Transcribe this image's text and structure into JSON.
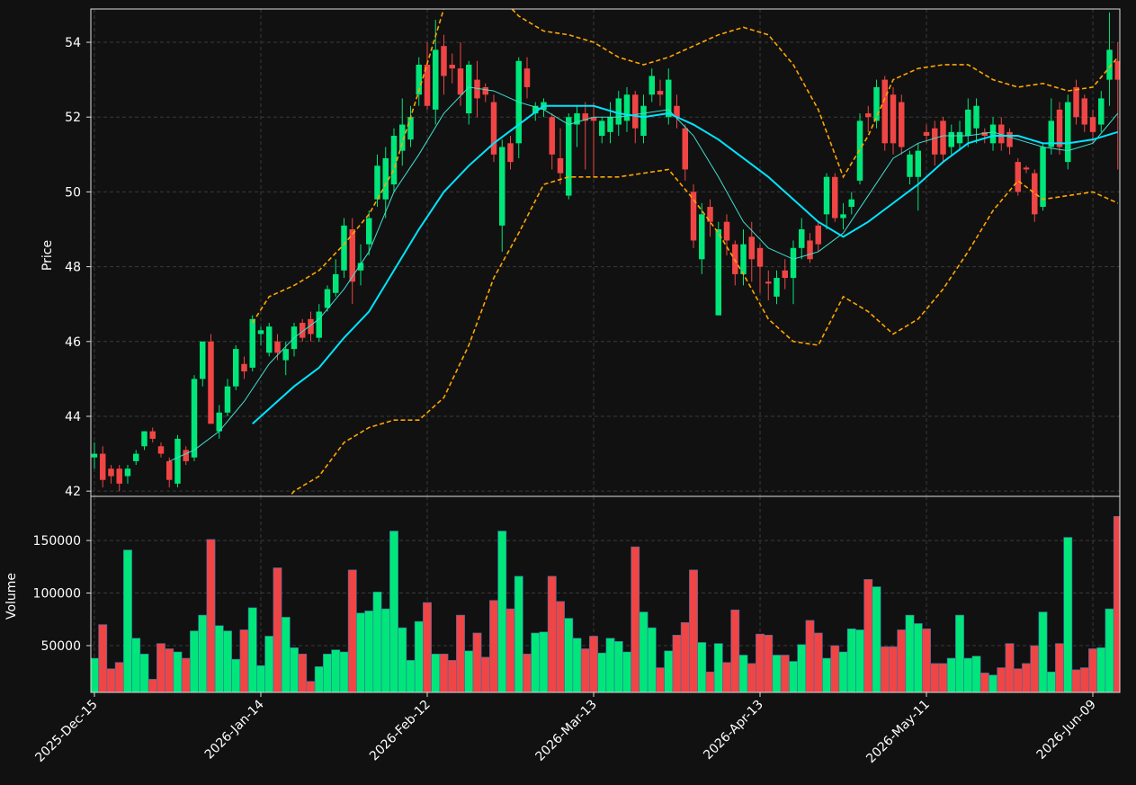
{
  "chart_data": {
    "type": "candlestick",
    "ylabel": "Price",
    "up_color": "#00e67a",
    "down_color": "#f04545",
    "grid": true,
    "xlim": [
      -0.43,
      123.24
    ],
    "xticks": [
      {
        "value": 0,
        "label": "2025-Dec-15"
      },
      {
        "value": 20,
        "label": "2026-Jan-14"
      },
      {
        "value": 40,
        "label": "2026-Feb-12"
      },
      {
        "value": 60,
        "label": "2026-Mar-13"
      },
      {
        "value": 80,
        "label": "2026-Apr-13"
      },
      {
        "value": 100,
        "label": "2026-May-11"
      },
      {
        "value": 120,
        "label": "2026-Jun-09"
      }
    ],
    "ylim": [
      41.86,
      54.89
    ],
    "yticks": [
      42,
      44,
      46,
      48,
      50,
      52,
      54
    ],
    "open": [
      42.9,
      43.0,
      42.6,
      42.6,
      42.4,
      42.8,
      43.2,
      43.6,
      43.2,
      42.8,
      42.2,
      43.1,
      42.9,
      45.0,
      46.0,
      43.6,
      44.1,
      44.8,
      45.4,
      45.3,
      46.2,
      45.7,
      46.0,
      45.5,
      45.8,
      46.5,
      46.6,
      46.1,
      46.9,
      47.3,
      47.9,
      49.0,
      47.9,
      48.6,
      49.8,
      49.8,
      50.2,
      51.1,
      51.4,
      52.6,
      53.4,
      52.2,
      53.9,
      53.4,
      53.3,
      52.1,
      53.0,
      52.8,
      52.4,
      49.1,
      51.3,
      51.3,
      53.3,
      52.1,
      52.2,
      52.0,
      50.9,
      49.9,
      51.8,
      52.1,
      52.0,
      51.5,
      51.6,
      51.8,
      51.9,
      52.6,
      51.5,
      52.6,
      52.7,
      52.0,
      52.3,
      51.7,
      50.0,
      48.2,
      49.6,
      46.7,
      49.2,
      48.6,
      47.8,
      48.8,
      48.5,
      47.6,
      47.2,
      47.9,
      47.7,
      48.5,
      48.7,
      49.1,
      49.4,
      50.4,
      49.3,
      49.6,
      50.3,
      52.1,
      51.9,
      53.0,
      52.6,
      52.4,
      50.4,
      50.4,
      51.6,
      51.7,
      51.9,
      51.2,
      51.3,
      51.5,
      51.7,
      51.6,
      51.3,
      51.8,
      51.6,
      50.8,
      50.65,
      50.5,
      49.6,
      51.2,
      52.2,
      50.8,
      52.8,
      52.5,
      52.0,
      51.8,
      53.0,
      53.5
    ],
    "high": [
      43.3,
      43.2,
      42.7,
      42.7,
      42.7,
      43.1,
      43.6,
      43.7,
      43.3,
      42.9,
      43.5,
      43.2,
      45.1,
      46.0,
      46.2,
      44.3,
      45.0,
      45.9,
      45.6,
      46.7,
      46.4,
      46.5,
      46.2,
      46.0,
      46.5,
      46.6,
      46.8,
      47.0,
      47.5,
      48.2,
      49.3,
      49.3,
      48.6,
      49.5,
      51.0,
      51.2,
      51.7,
      52.5,
      52.3,
      53.6,
      54.0,
      54.6,
      54.2,
      53.7,
      54.0,
      53.5,
      53.5,
      52.9,
      52.6,
      51.4,
      51.5,
      53.6,
      53.6,
      52.4,
      52.5,
      52.1,
      51.7,
      52.1,
      52.3,
      52.4,
      52.4,
      52.0,
      52.4,
      52.7,
      52.8,
      52.7,
      52.6,
      53.3,
      53.0,
      53.3,
      52.6,
      51.8,
      50.2,
      49.7,
      49.8,
      49.2,
      49.4,
      48.7,
      49.0,
      49.2,
      48.6,
      47.9,
      47.9,
      48.2,
      48.7,
      49.3,
      48.9,
      49.2,
      50.5,
      50.5,
      49.7,
      50.0,
      52.1,
      52.3,
      53.0,
      53.1,
      52.8,
      52.6,
      51.1,
      51.3,
      51.8,
      51.9,
      52.0,
      51.8,
      51.9,
      52.5,
      52.5,
      51.7,
      52.0,
      52.0,
      51.7,
      50.9,
      50.7,
      50.6,
      51.3,
      52.5,
      52.4,
      52.6,
      53.0,
      52.6,
      52.2,
      52.7,
      54.8,
      54.0
    ],
    "low": [
      42.6,
      42.1,
      42.2,
      42.0,
      42.2,
      42.7,
      43.1,
      43.3,
      42.9,
      42.1,
      42.1,
      42.7,
      42.8,
      44.8,
      43.8,
      43.4,
      44.0,
      44.7,
      45.0,
      45.2,
      45.9,
      45.6,
      45.5,
      45.1,
      45.6,
      46.0,
      46.0,
      46.0,
      46.8,
      47.2,
      47.7,
      47.0,
      47.5,
      48.3,
      49.6,
      49.3,
      50.0,
      50.7,
      51.2,
      52.3,
      52.2,
      51.8,
      52.6,
      52.9,
      52.3,
      51.8,
      52.0,
      52.4,
      50.8,
      48.4,
      50.6,
      50.9,
      52.5,
      51.9,
      52.0,
      50.6,
      50.2,
      49.8,
      51.2,
      50.6,
      50.4,
      51.3,
      51.3,
      51.5,
      51.6,
      51.3,
      51.3,
      52.4,
      52.3,
      51.8,
      51.7,
      50.3,
      48.5,
      47.8,
      48.8,
      46.7,
      48.3,
      47.5,
      47.5,
      47.6,
      47.3,
      47.1,
      47.0,
      47.4,
      47.0,
      48.2,
      48.1,
      48.4,
      49.0,
      49.2,
      49.0,
      49.4,
      50.2,
      51.6,
      51.7,
      51.1,
      51.0,
      51.0,
      50.2,
      49.5,
      51.3,
      50.7,
      50.8,
      51.0,
      51.1,
      51.2,
      51.3,
      51.3,
      51.1,
      51.1,
      51.0,
      49.9,
      50.5,
      49.2,
      49.5,
      51.0,
      51.0,
      50.6,
      51.8,
      51.6,
      51.3,
      51.6,
      52.3,
      50.6
    ],
    "close": [
      43.0,
      42.3,
      42.4,
      42.2,
      42.6,
      43.0,
      43.6,
      43.4,
      43.0,
      42.3,
      43.4,
      42.8,
      45.0,
      46.0,
      43.8,
      44.1,
      44.8,
      45.8,
      45.2,
      46.6,
      46.3,
      46.4,
      45.7,
      45.8,
      46.4,
      46.1,
      46.2,
      46.8,
      47.4,
      47.8,
      49.1,
      47.6,
      48.1,
      49.3,
      50.7,
      50.9,
      51.5,
      51.8,
      52.0,
      53.4,
      52.3,
      53.8,
      53.1,
      53.3,
      52.6,
      53.4,
      52.5,
      52.6,
      51.0,
      51.2,
      50.8,
      53.5,
      52.8,
      52.3,
      52.4,
      51.0,
      50.5,
      52.0,
      52.1,
      51.9,
      51.9,
      51.9,
      52.0,
      52.5,
      52.6,
      51.7,
      52.3,
      53.1,
      52.6,
      53.0,
      52.0,
      50.6,
      48.7,
      49.4,
      49.2,
      49.0,
      48.7,
      47.8,
      48.6,
      48.2,
      48.0,
      47.55,
      47.7,
      47.7,
      48.5,
      49.0,
      48.2,
      48.6,
      50.4,
      49.3,
      49.4,
      49.8,
      51.9,
      52.0,
      52.8,
      51.3,
      51.3,
      51.2,
      51.0,
      51.1,
      51.5,
      51.0,
      51.0,
      51.6,
      51.6,
      52.2,
      52.3,
      51.5,
      51.8,
      51.3,
      51.2,
      50.0,
      50.6,
      49.4,
      51.2,
      51.9,
      51.2,
      52.4,
      52.0,
      51.8,
      51.6,
      52.5,
      53.8,
      53.0
    ],
    "overlays": [
      {
        "color": "#40e0d0",
        "width": 1,
        "dash": "none",
        "x": [
          9,
          12,
          15,
          18,
          21,
          24,
          27,
          30,
          33,
          36,
          39,
          42,
          45,
          48,
          51,
          54,
          57,
          60,
          63,
          66,
          69,
          72,
          75,
          78,
          81,
          84,
          87,
          90,
          93,
          96,
          99,
          102,
          105,
          108,
          111,
          114,
          117,
          120,
          123
        ],
        "values": [
          42.8,
          43.1,
          43.6,
          44.4,
          45.4,
          46.1,
          46.6,
          47.4,
          48.4,
          50.0,
          51.0,
          52.1,
          52.8,
          52.7,
          52.4,
          52.2,
          51.8,
          52.0,
          52.0,
          52.1,
          52.2,
          51.5,
          50.4,
          49.2,
          48.5,
          48.2,
          48.4,
          48.9,
          49.9,
          50.9,
          51.3,
          51.5,
          51.5,
          51.6,
          51.4,
          51.2,
          51.1,
          51.3,
          52.1
        ]
      },
      {
        "color": "#00e5ff",
        "width": 2,
        "dash": "none",
        "x": [
          19,
          21,
          24,
          27,
          30,
          33,
          36,
          39,
          42,
          45,
          48,
          51,
          54,
          57,
          60,
          63,
          66,
          69,
          72,
          75,
          78,
          81,
          84,
          87,
          90,
          93,
          96,
          99,
          102,
          105,
          108,
          111,
          114,
          117,
          120,
          123
        ],
        "values": [
          43.8,
          44.2,
          44.8,
          45.3,
          46.1,
          46.8,
          47.9,
          49.0,
          50.0,
          50.7,
          51.3,
          51.8,
          52.3,
          52.3,
          52.3,
          52.1,
          52.0,
          52.1,
          51.8,
          51.4,
          50.9,
          50.4,
          49.8,
          49.2,
          48.8,
          49.2,
          49.7,
          50.2,
          50.8,
          51.3,
          51.5,
          51.5,
          51.3,
          51.3,
          51.4,
          51.6
        ]
      },
      {
        "color": "#ffa500",
        "width": 1.6,
        "dash": "5 3",
        "x": [
          19,
          21,
          24,
          27,
          30,
          33,
          36,
          39,
          42,
          45,
          48,
          51,
          54,
          57,
          60,
          63,
          66,
          69,
          72,
          75,
          78,
          81,
          84,
          87,
          90,
          93,
          96,
          99,
          102,
          105,
          108,
          111,
          114,
          117,
          120,
          123
        ],
        "values": [
          46.5,
          47.2,
          47.5,
          47.9,
          48.6,
          49.4,
          50.6,
          52.7,
          54.9,
          55.5,
          55.4,
          54.7,
          54.3,
          54.2,
          54.0,
          53.6,
          53.4,
          53.6,
          53.9,
          54.2,
          54.4,
          54.2,
          53.4,
          52.2,
          50.4,
          51.5,
          53.0,
          53.3,
          53.4,
          53.4,
          53.0,
          52.8,
          52.9,
          52.7,
          52.8,
          53.6
        ]
      },
      {
        "color": "#ffa500",
        "width": 1.6,
        "dash": "5 3",
        "x": [
          19,
          21,
          24,
          27,
          30,
          33,
          36,
          39,
          42,
          45,
          48,
          51,
          54,
          57,
          60,
          63,
          66,
          69,
          72,
          75,
          78,
          81,
          84,
          87,
          90,
          93,
          96,
          99,
          102,
          105,
          108,
          111,
          114,
          117,
          120,
          123
        ],
        "values": [
          40.8,
          41.2,
          42.0,
          42.4,
          43.3,
          43.7,
          43.9,
          43.9,
          44.5,
          45.9,
          47.7,
          48.9,
          50.2,
          50.4,
          50.4,
          50.4,
          50.5,
          50.6,
          49.8,
          48.9,
          47.8,
          46.6,
          46.0,
          45.9,
          47.2,
          46.8,
          46.2,
          46.6,
          47.4,
          48.4,
          49.5,
          50.3,
          49.8,
          49.9,
          50.0,
          49.7
        ]
      }
    ],
    "volume": {
      "ylabel": "Volume",
      "ylim": [
        5500,
        192000
      ],
      "yticks": [
        50000,
        100000,
        150000
      ],
      "values": [
        38000,
        70000,
        28000,
        34000,
        141000,
        57000,
        42000,
        18000,
        52000,
        47000,
        44000,
        38000,
        64000,
        79000,
        151000,
        69000,
        64000,
        37000,
        65000,
        86000,
        31000,
        59000,
        124000,
        77000,
        48000,
        42000,
        16000,
        30000,
        42000,
        46000,
        44000,
        122000,
        81000,
        83000,
        101000,
        85000,
        159000,
        67000,
        36000,
        73000,
        91000,
        42000,
        42000,
        36000,
        79000,
        45000,
        62000,
        39000,
        93000,
        159000,
        85000,
        116000,
        42000,
        62000,
        63000,
        116000,
        92000,
        76000,
        57000,
        47000,
        59000,
        43000,
        57000,
        54000,
        44000,
        144000,
        82000,
        67000,
        29000,
        45000,
        60000,
        72000,
        122000,
        53000,
        25000,
        52000,
        34000,
        84000,
        41000,
        33000,
        61000,
        60000,
        41000,
        41000,
        35000,
        51000,
        74000,
        62000,
        38000,
        50000,
        44000,
        66000,
        65000,
        113000,
        106000,
        49000,
        49000,
        65000,
        79000,
        71000,
        66000,
        33000,
        33000,
        38000,
        79000,
        38000,
        40000,
        24000,
        22000,
        29000,
        52000,
        28000,
        33000,
        50000,
        82000,
        25000,
        52000,
        153000,
        27000,
        29000,
        47000,
        48000,
        85000,
        173000
      ]
    }
  }
}
